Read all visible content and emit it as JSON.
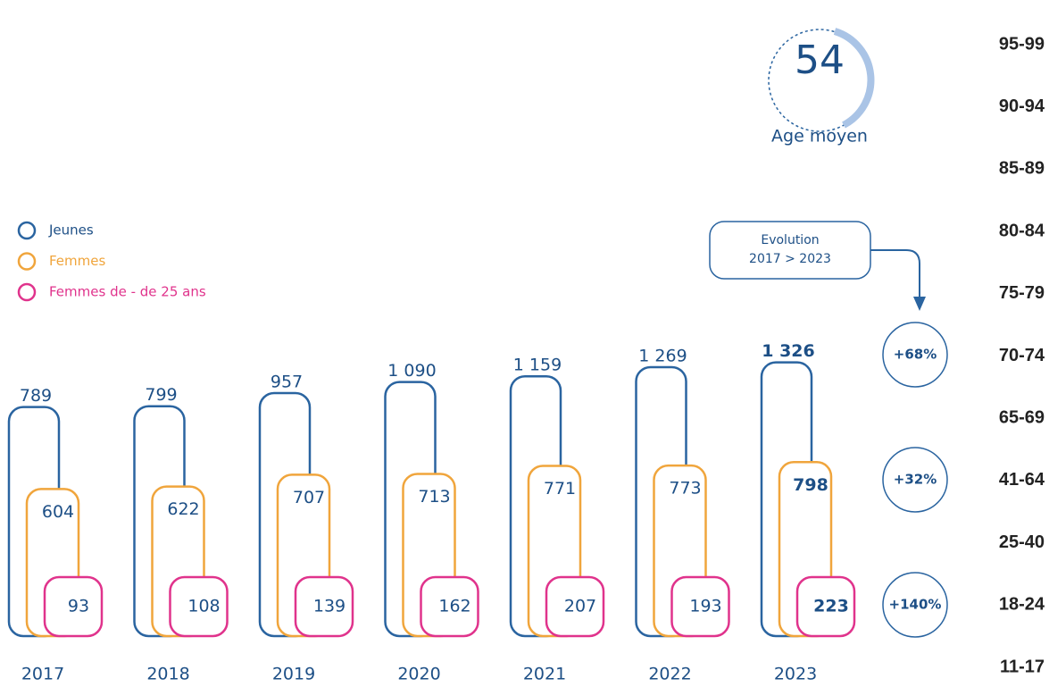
{
  "chart_data": {
    "type": "bar",
    "categories": [
      "2017",
      "2018",
      "2019",
      "2020",
      "2021",
      "2022",
      "2023"
    ],
    "series": [
      {
        "name": "Jeunes",
        "color": "#2a64a0",
        "values": [
          789,
          799,
          957,
          1090,
          1159,
          1269,
          1326
        ],
        "value_labels": [
          "789",
          "799",
          "957",
          "1 090",
          "1 159",
          "1 269",
          "1 326"
        ]
      },
      {
        "name": "Femmes",
        "color": "#f0a53c",
        "values": [
          604,
          622,
          707,
          713,
          771,
          773,
          798
        ]
      },
      {
        "name": "Femmes de - de 25 ans",
        "color": "#e0338c",
        "values": [
          93,
          108,
          139,
          162,
          207,
          193,
          223
        ]
      }
    ],
    "legend": "upper left"
  },
  "average_age": {
    "value": 54,
    "label": "Age moyen"
  },
  "evolution": {
    "title": [
      "Evolution",
      "2017 > 2023"
    ],
    "values": [
      68,
      32,
      140
    ],
    "value_labels": [
      "+68%",
      "+32%",
      "+140%"
    ]
  },
  "age_ranges": [
    "95-99",
    "90-94",
    "85-89",
    "80-84",
    "75-79",
    "70-74",
    "65-69",
    "41-64",
    "25-40",
    "18-24",
    "11-17"
  ]
}
